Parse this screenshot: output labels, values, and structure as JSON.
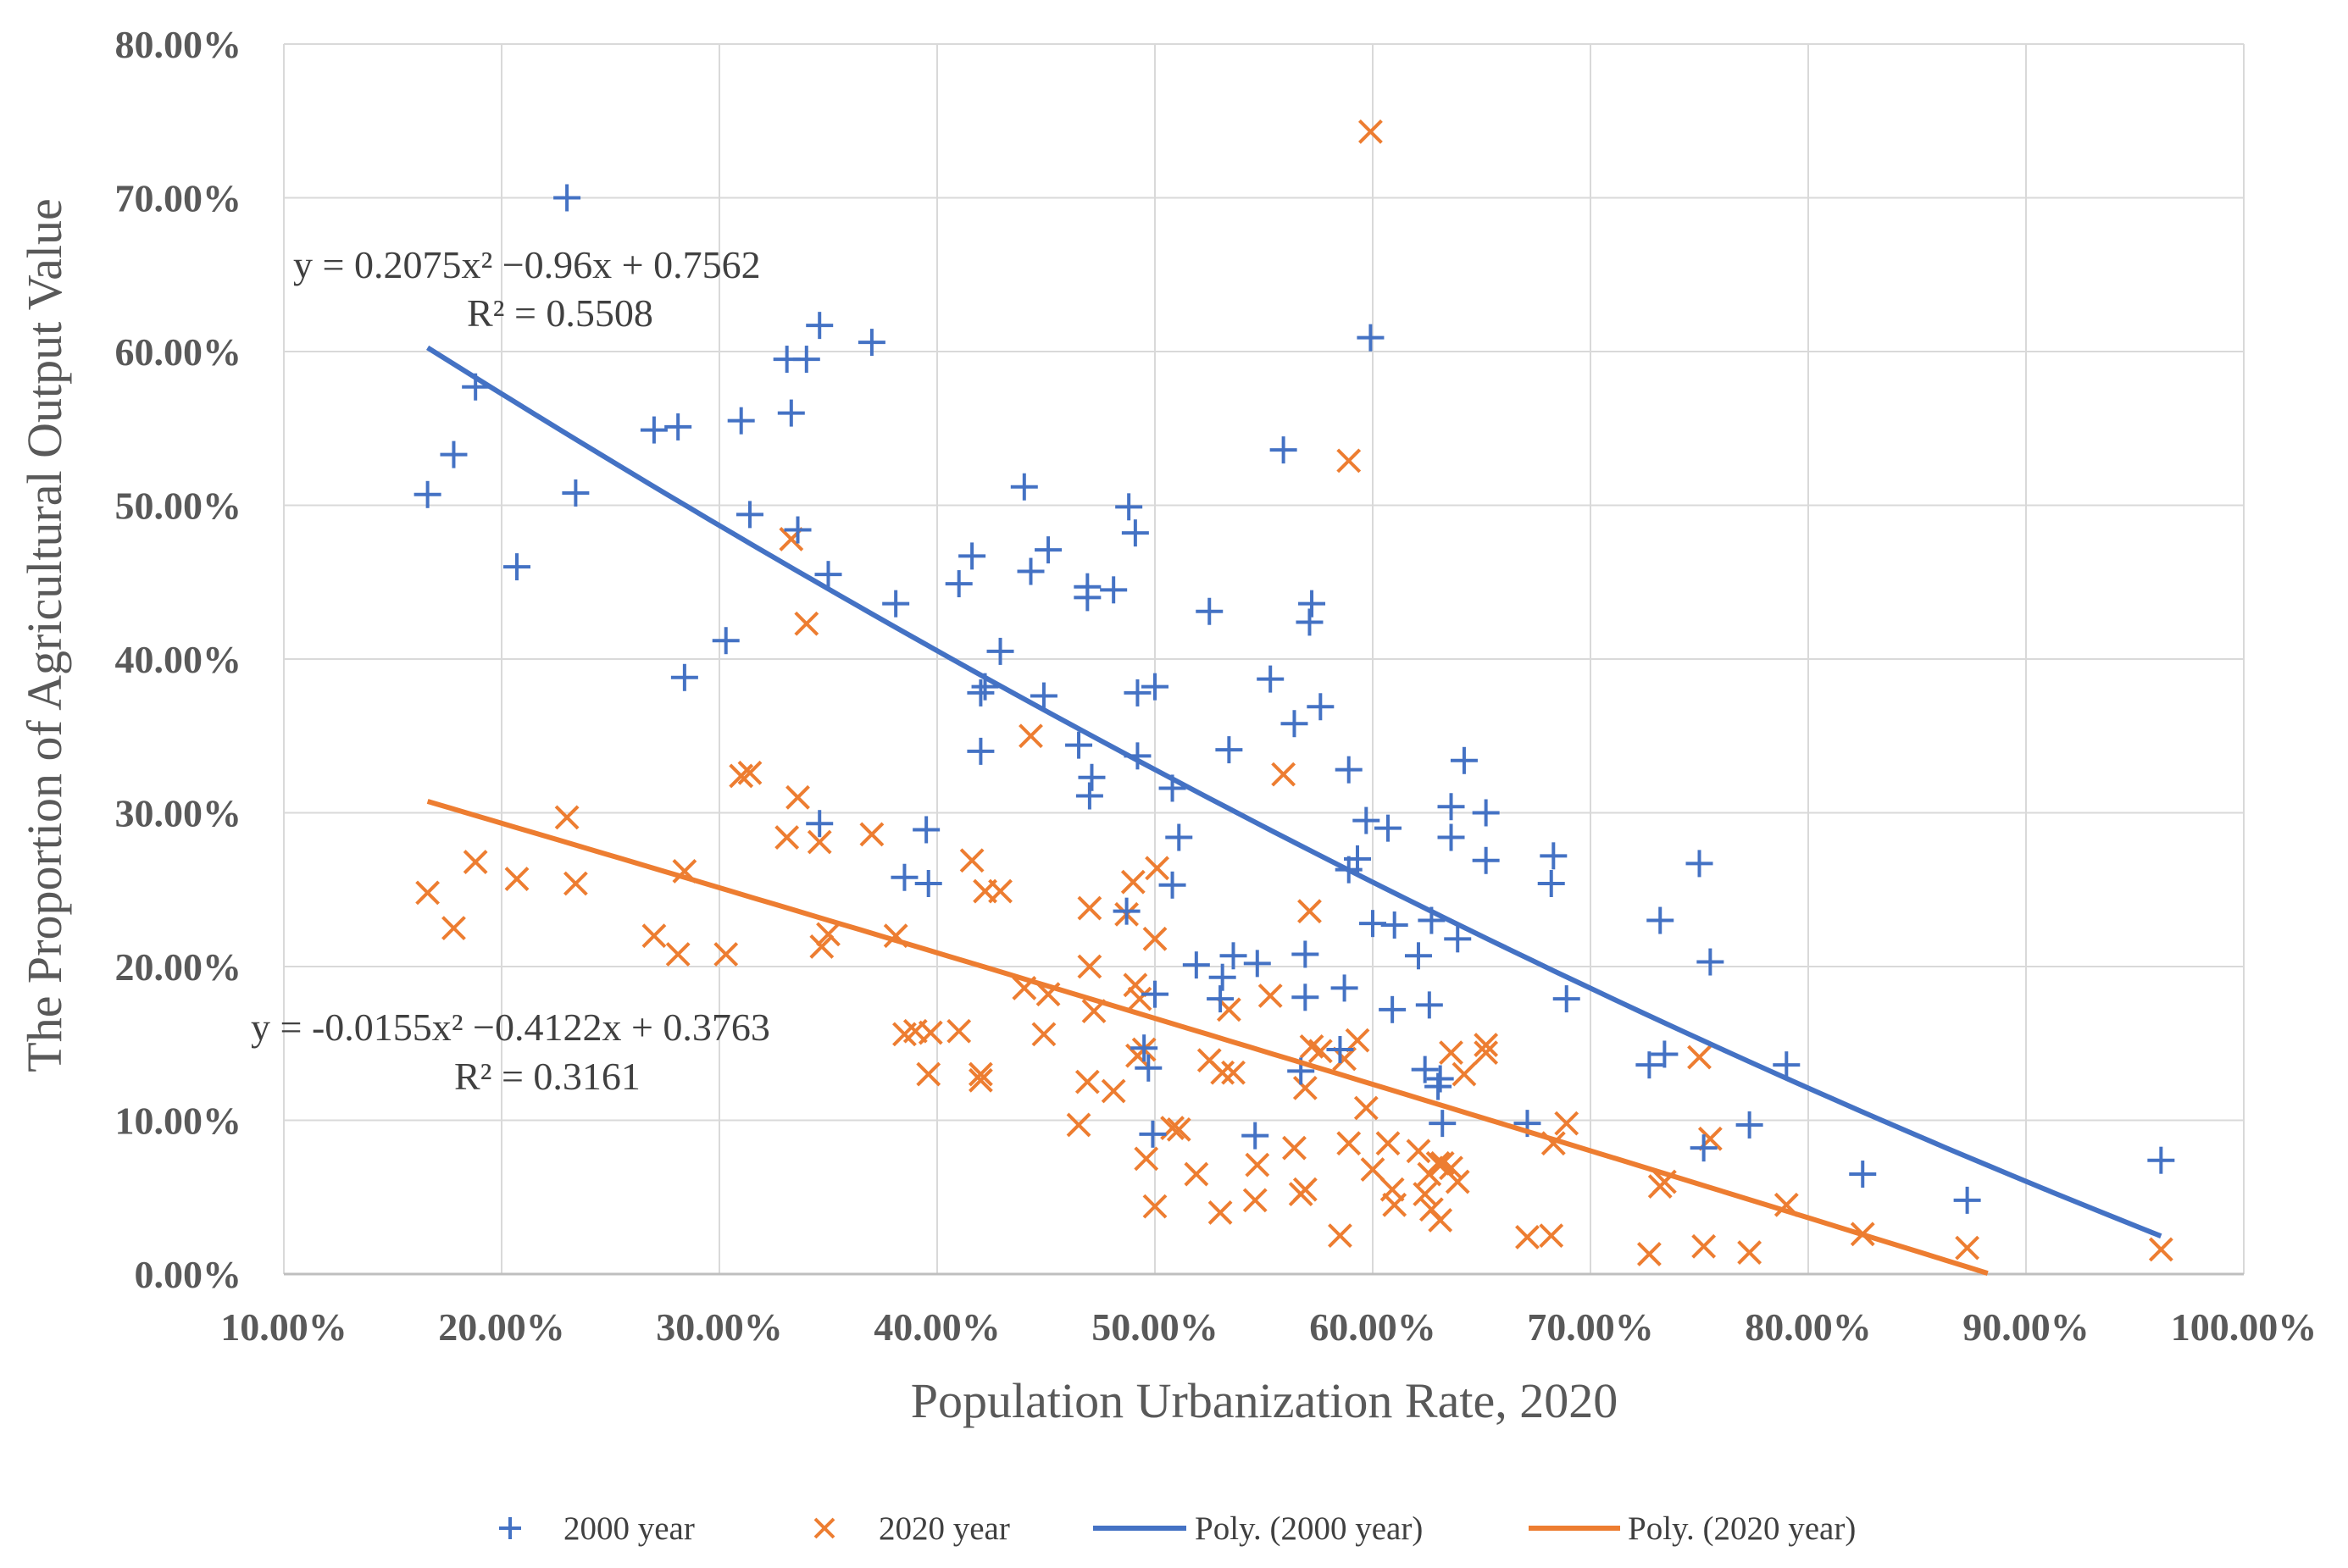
{
  "chart_data": {
    "type": "scatter",
    "xlabel": "Population Urbanization Rate, 2020",
    "ylabel": "The Proportion of Agricultural Output Value",
    "xlim": [
      0.1,
      1.0
    ],
    "ylim": [
      0.0,
      0.8
    ],
    "x_ticks": [
      "10.00%",
      "20.00%",
      "30.00%",
      "40.00%",
      "50.00%",
      "60.00%",
      "70.00%",
      "80.00%",
      "90.00%",
      "100.00%"
    ],
    "y_ticks": [
      "0.00%",
      "10.00%",
      "20.00%",
      "30.00%",
      "40.00%",
      "50.00%",
      "60.00%",
      "70.00%",
      "80.00%"
    ],
    "grid": true,
    "legend_position": "bottom",
    "colors": {
      "s2000": "#4472C4",
      "s2020": "#ED7D31",
      "grid": "#D9D9D9",
      "axis": "#BFBFBF"
    },
    "series": [
      {
        "name": "2000 year",
        "marker": "plus",
        "points": [
          [
            0.166,
            0.507
          ],
          [
            0.178,
            0.533
          ],
          [
            0.188,
            0.577
          ],
          [
            0.207,
            0.46
          ],
          [
            0.23,
            0.7
          ],
          [
            0.234,
            0.508
          ],
          [
            0.27,
            0.549
          ],
          [
            0.281,
            0.551
          ],
          [
            0.284,
            0.388
          ],
          [
            0.303,
            0.412
          ],
          [
            0.31,
            0.555
          ],
          [
            0.314,
            0.494
          ],
          [
            0.331,
            0.595
          ],
          [
            0.333,
            0.56
          ],
          [
            0.336,
            0.484
          ],
          [
            0.34,
            0.595
          ],
          [
            0.346,
            0.617
          ],
          [
            0.35,
            0.455
          ],
          [
            0.346,
            0.293
          ],
          [
            0.37,
            0.606
          ],
          [
            0.381,
            0.436
          ],
          [
            0.385,
            0.258
          ],
          [
            0.395,
            0.289
          ],
          [
            0.396,
            0.254
          ],
          [
            0.41,
            0.449
          ],
          [
            0.416,
            0.467
          ],
          [
            0.42,
            0.34
          ],
          [
            0.42,
            0.378
          ],
          [
            0.422,
            0.382
          ],
          [
            0.429,
            0.405
          ],
          [
            0.44,
            0.512
          ],
          [
            0.443,
            0.457
          ],
          [
            0.449,
            0.376
          ],
          [
            0.451,
            0.471
          ],
          [
            0.465,
            0.344
          ],
          [
            0.469,
            0.44
          ],
          [
            0.469,
            0.447
          ],
          [
            0.47,
            0.311
          ],
          [
            0.471,
            0.323
          ],
          [
            0.481,
            0.445
          ],
          [
            0.487,
            0.236
          ],
          [
            0.488,
            0.499
          ],
          [
            0.491,
            0.482
          ],
          [
            0.492,
            0.337
          ],
          [
            0.492,
            0.378
          ],
          [
            0.495,
            0.147
          ],
          [
            0.497,
            0.134
          ],
          [
            0.5,
            0.382
          ],
          [
            0.499,
            0.091
          ],
          [
            0.5,
            0.182
          ],
          [
            0.508,
            0.316
          ],
          [
            0.508,
            0.253
          ],
          [
            0.511,
            0.284
          ],
          [
            0.519,
            0.201
          ],
          [
            0.525,
            0.431
          ],
          [
            0.53,
            0.179
          ],
          [
            0.531,
            0.193
          ],
          [
            0.534,
            0.341
          ],
          [
            0.536,
            0.207
          ],
          [
            0.546,
            0.09
          ],
          [
            0.547,
            0.202
          ],
          [
            0.553,
            0.387
          ],
          [
            0.559,
            0.536
          ],
          [
            0.564,
            0.358
          ],
          [
            0.567,
            0.132
          ],
          [
            0.569,
            0.18
          ],
          [
            0.569,
            0.208
          ],
          [
            0.571,
            0.424
          ],
          [
            0.572,
            0.436
          ],
          [
            0.576,
            0.369
          ],
          [
            0.585,
            0.146
          ],
          [
            0.587,
            0.186
          ],
          [
            0.589,
            0.328
          ],
          [
            0.589,
            0.263
          ],
          [
            0.593,
            0.27
          ],
          [
            0.597,
            0.295
          ],
          [
            0.599,
            0.609
          ],
          [
            0.6,
            0.228
          ],
          [
            0.607,
            0.29
          ],
          [
            0.609,
            0.172
          ],
          [
            0.61,
            0.227
          ],
          [
            0.621,
            0.207
          ],
          [
            0.624,
            0.133
          ],
          [
            0.626,
            0.175
          ],
          [
            0.627,
            0.23
          ],
          [
            0.63,
            0.122
          ],
          [
            0.631,
            0.127
          ],
          [
            0.632,
            0.098
          ],
          [
            0.636,
            0.304
          ],
          [
            0.636,
            0.284
          ],
          [
            0.639,
            0.218
          ],
          [
            0.642,
            0.334
          ],
          [
            0.652,
            0.3
          ],
          [
            0.652,
            0.269
          ],
          [
            0.671,
            0.098
          ],
          [
            0.682,
            0.254
          ],
          [
            0.683,
            0.272
          ],
          [
            0.689,
            0.179
          ],
          [
            0.727,
            0.136
          ],
          [
            0.732,
            0.23
          ],
          [
            0.734,
            0.143
          ],
          [
            0.75,
            0.267
          ],
          [
            0.752,
            0.082
          ],
          [
            0.755,
            0.203
          ],
          [
            0.773,
            0.097
          ],
          [
            0.79,
            0.136
          ],
          [
            0.825,
            0.065
          ],
          [
            0.873,
            0.048
          ],
          [
            0.962,
            0.074
          ]
        ]
      },
      {
        "name": "2020 year",
        "marker": "cross",
        "points": [
          [
            0.166,
            0.248
          ],
          [
            0.178,
            0.225
          ],
          [
            0.188,
            0.268
          ],
          [
            0.207,
            0.257
          ],
          [
            0.23,
            0.297
          ],
          [
            0.234,
            0.254
          ],
          [
            0.27,
            0.22
          ],
          [
            0.281,
            0.208
          ],
          [
            0.284,
            0.262
          ],
          [
            0.303,
            0.208
          ],
          [
            0.31,
            0.324
          ],
          [
            0.314,
            0.326
          ],
          [
            0.331,
            0.284
          ],
          [
            0.333,
            0.478
          ],
          [
            0.336,
            0.31
          ],
          [
            0.34,
            0.423
          ],
          [
            0.346,
            0.281
          ],
          [
            0.347,
            0.213
          ],
          [
            0.35,
            0.221
          ],
          [
            0.37,
            0.286
          ],
          [
            0.381,
            0.22
          ],
          [
            0.385,
            0.156
          ],
          [
            0.39,
            0.158
          ],
          [
            0.396,
            0.13
          ],
          [
            0.397,
            0.157
          ],
          [
            0.41,
            0.158
          ],
          [
            0.416,
            0.269
          ],
          [
            0.42,
            0.126
          ],
          [
            0.42,
            0.13
          ],
          [
            0.422,
            0.249
          ],
          [
            0.429,
            0.249
          ],
          [
            0.44,
            0.186
          ],
          [
            0.443,
            0.35
          ],
          [
            0.449,
            0.156
          ],
          [
            0.451,
            0.182
          ],
          [
            0.465,
            0.097
          ],
          [
            0.469,
            0.125
          ],
          [
            0.47,
            0.238
          ],
          [
            0.47,
            0.2
          ],
          [
            0.472,
            0.171
          ],
          [
            0.481,
            0.119
          ],
          [
            0.487,
            0.234
          ],
          [
            0.49,
            0.255
          ],
          [
            0.491,
            0.188
          ],
          [
            0.492,
            0.142
          ],
          [
            0.493,
            0.179
          ],
          [
            0.495,
            0.146
          ],
          [
            0.496,
            0.075
          ],
          [
            0.5,
            0.044
          ],
          [
            0.5,
            0.218
          ],
          [
            0.501,
            0.264
          ],
          [
            0.508,
            0.095
          ],
          [
            0.511,
            0.094
          ],
          [
            0.519,
            0.065
          ],
          [
            0.525,
            0.139
          ],
          [
            0.53,
            0.04
          ],
          [
            0.531,
            0.131
          ],
          [
            0.534,
            0.172
          ],
          [
            0.536,
            0.131
          ],
          [
            0.546,
            0.048
          ],
          [
            0.547,
            0.071
          ],
          [
            0.553,
            0.181
          ],
          [
            0.559,
            0.325
          ],
          [
            0.564,
            0.082
          ],
          [
            0.567,
            0.052
          ],
          [
            0.569,
            0.121
          ],
          [
            0.569,
            0.055
          ],
          [
            0.571,
            0.236
          ],
          [
            0.572,
            0.148
          ],
          [
            0.576,
            0.145
          ],
          [
            0.585,
            0.025
          ],
          [
            0.587,
            0.14
          ],
          [
            0.589,
            0.529
          ],
          [
            0.589,
            0.085
          ],
          [
            0.593,
            0.152
          ],
          [
            0.597,
            0.108
          ],
          [
            0.599,
            0.743
          ],
          [
            0.6,
            0.068
          ],
          [
            0.607,
            0.085
          ],
          [
            0.609,
            0.055
          ],
          [
            0.61,
            0.045
          ],
          [
            0.621,
            0.08
          ],
          [
            0.624,
            0.052
          ],
          [
            0.626,
            0.065
          ],
          [
            0.627,
            0.042
          ],
          [
            0.63,
            0.072
          ],
          [
            0.631,
            0.035
          ],
          [
            0.632,
            0.072
          ],
          [
            0.636,
            0.069
          ],
          [
            0.636,
            0.144
          ],
          [
            0.639,
            0.06
          ],
          [
            0.642,
            0.13
          ],
          [
            0.652,
            0.149
          ],
          [
            0.652,
            0.144
          ],
          [
            0.671,
            0.024
          ],
          [
            0.682,
            0.025
          ],
          [
            0.683,
            0.085
          ],
          [
            0.689,
            0.098
          ],
          [
            0.727,
            0.013
          ],
          [
            0.732,
            0.057
          ],
          [
            0.734,
            0.06
          ],
          [
            0.75,
            0.141
          ],
          [
            0.752,
            0.018
          ],
          [
            0.755,
            0.088
          ],
          [
            0.773,
            0.014
          ],
          [
            0.79,
            0.045
          ],
          [
            0.825,
            0.026
          ],
          [
            0.873,
            0.017
          ],
          [
            0.962,
            0.016
          ]
        ]
      }
    ],
    "trendlines": [
      {
        "name": "Poly. (2000 year)",
        "coeffs": [
          0.2075,
          -0.96,
          0.7562
        ],
        "x_range": [
          0.166,
          0.962
        ],
        "equation": "y = 0.2075x² −0.96x + 0.7562",
        "r2": "R² = 0.5508"
      },
      {
        "name": "Poly. (2020 year)",
        "coeffs": [
          -0.0155,
          -0.4122,
          0.3763
        ],
        "x_range": [
          0.166,
          0.962
        ],
        "equation": "y = -0.0155x² −0.4122x + 0.3763",
        "r2": "R² = 0.3161"
      }
    ],
    "legend": [
      "2000 year",
      "2020 year",
      "Poly. (2000 year)",
      "Poly. (2020 year)"
    ]
  }
}
